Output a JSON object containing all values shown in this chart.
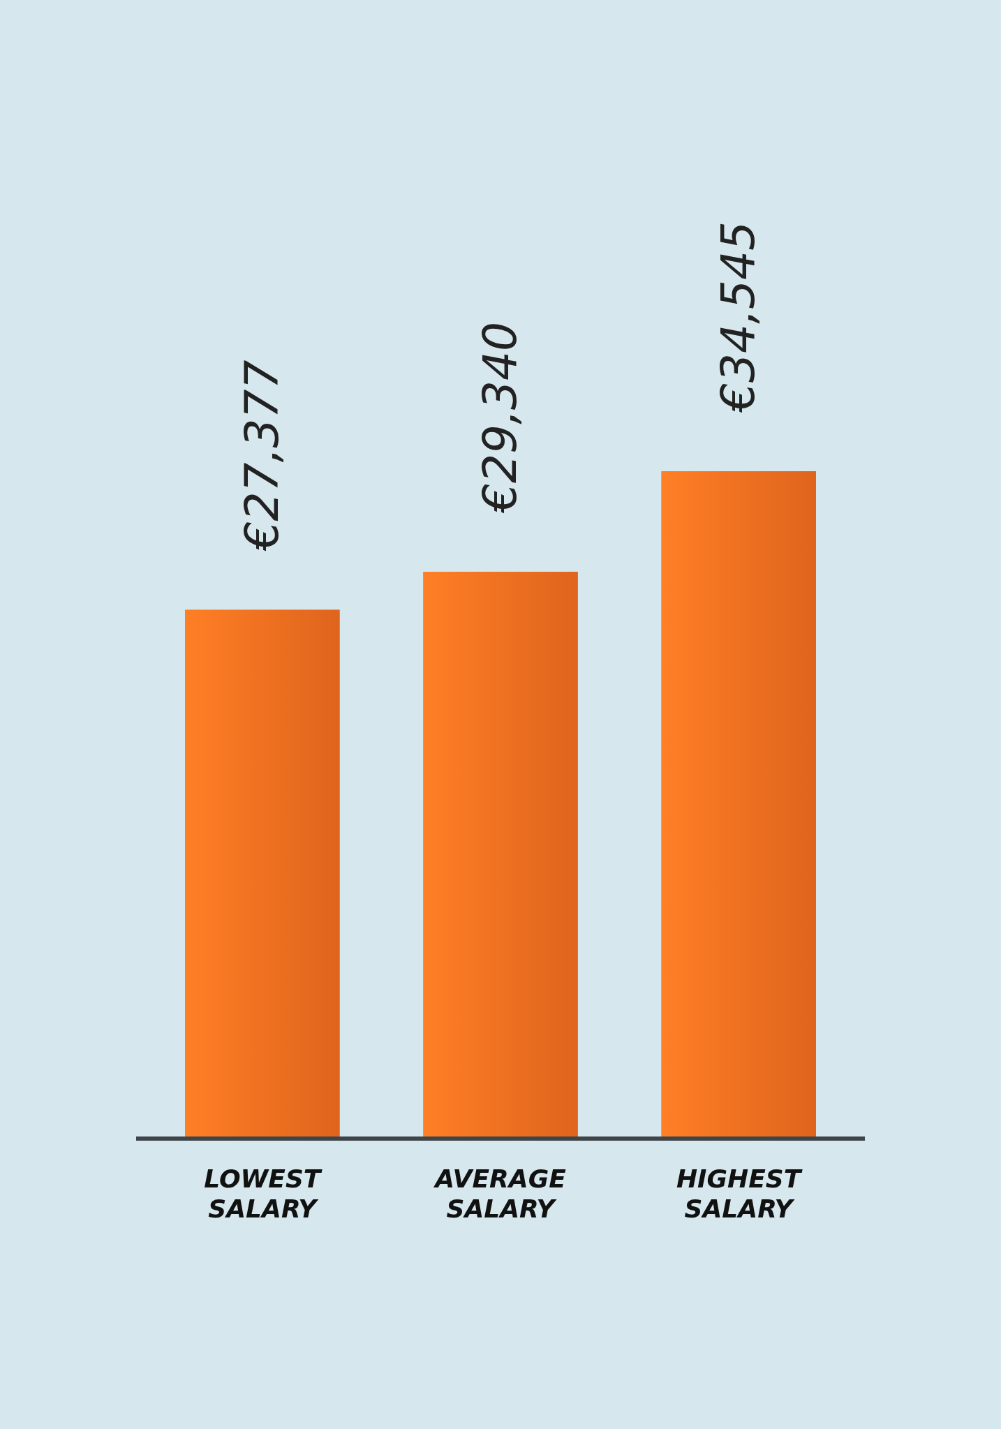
{
  "chart_data": {
    "type": "bar",
    "categories": [
      "LOWEST SALARY",
      "AVERAGE SALARY",
      "HIGHEST SALARY"
    ],
    "values": [
      27377,
      29340,
      34545
    ],
    "value_labels": [
      "€27,377",
      "€29,340",
      "€34,545"
    ],
    "color": "#eb6a1f"
  }
}
